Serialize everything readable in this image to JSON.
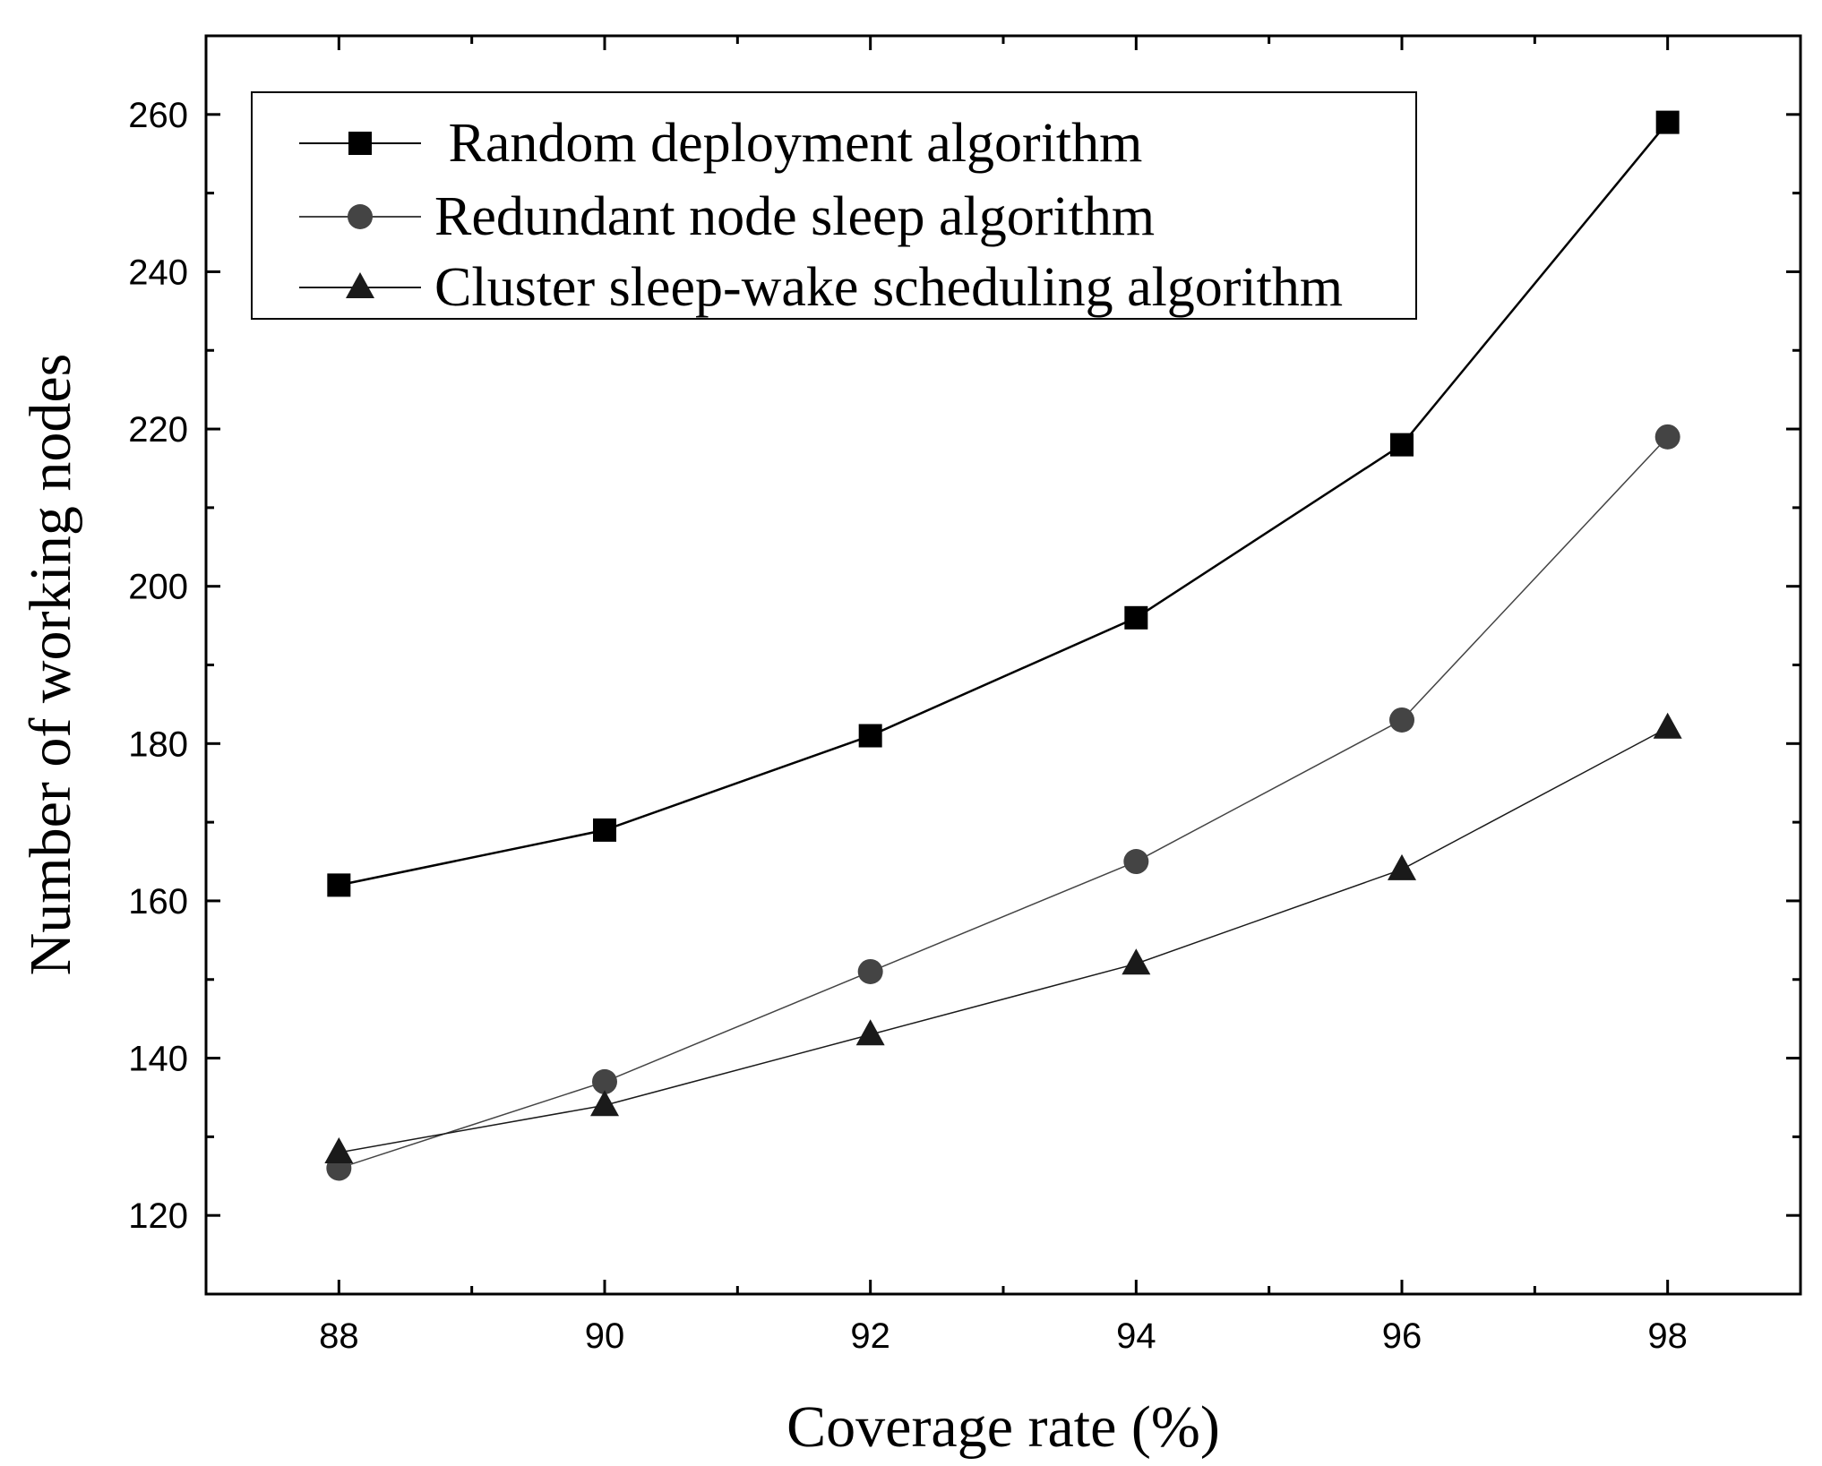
{
  "chart_data": {
    "type": "line",
    "title": "",
    "xlabel": "Coverage rate (%)",
    "ylabel": "Number of working nodes",
    "x": [
      88,
      90,
      92,
      94,
      96,
      98
    ],
    "xlim": [
      87,
      99
    ],
    "ylim": [
      110,
      270
    ],
    "xticks": [
      "88",
      "90",
      "92",
      "94",
      "96",
      "98"
    ],
    "yticks": [
      "120",
      "140",
      "160",
      "180",
      "200",
      "220",
      "240",
      "260"
    ],
    "grid": false,
    "legend_position": "top-left",
    "series": [
      {
        "name": " Random deployment algorithm",
        "marker": "square",
        "color": "#000000",
        "values": [
          162,
          169,
          181,
          196,
          218,
          259
        ]
      },
      {
        "name": "Redundant node sleep algorithm",
        "marker": "circle",
        "color": "#444444",
        "values": [
          126,
          137,
          151,
          165,
          183,
          219
        ]
      },
      {
        "name": "Cluster sleep-wake scheduling algorithm",
        "marker": "triangle",
        "color": "#1a1a1a",
        "values": [
          128,
          134,
          143,
          152,
          164,
          182
        ]
      }
    ]
  }
}
